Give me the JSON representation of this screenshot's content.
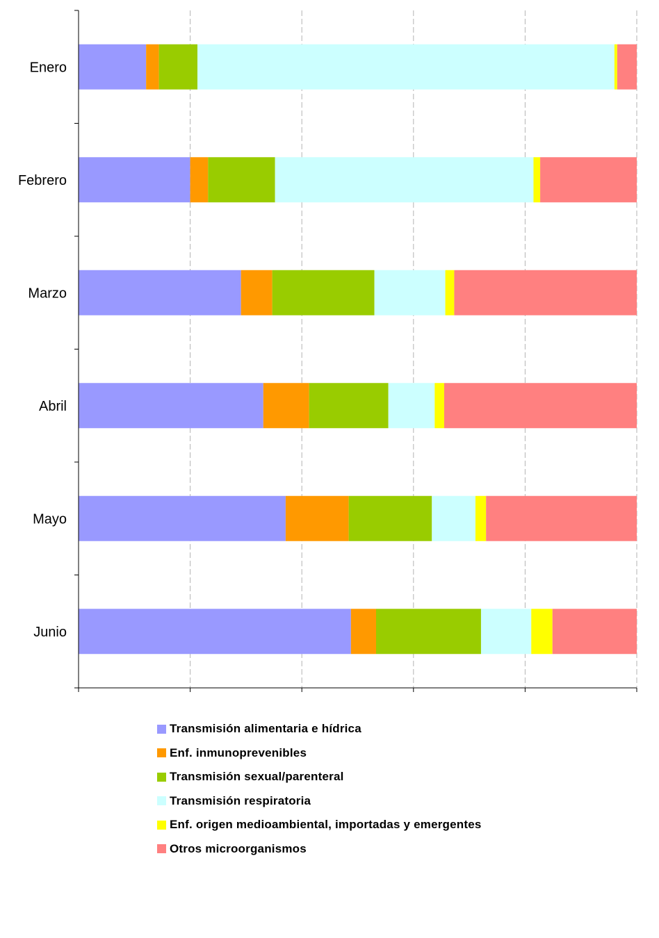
{
  "chart_data": {
    "type": "bar",
    "orientation": "horizontal",
    "stacked": "percent",
    "categories": [
      "Enero",
      "Febrero",
      "Marzo",
      "Abril",
      "Mayo",
      "Junio"
    ],
    "series": [
      {
        "name": "Transmisión alimentaria e hídrica",
        "color": "#9999ff",
        "values": [
          12.1,
          20.0,
          29.1,
          33.1,
          37.1,
          48.8
        ]
      },
      {
        "name": "Enf. inmunoprevenibles",
        "color": "#ff9900",
        "values": [
          2.3,
          3.2,
          5.6,
          8.2,
          11.3,
          4.5
        ]
      },
      {
        "name": "Transmisión sexual/parenteral",
        "color": "#99cc00",
        "values": [
          6.9,
          12.0,
          18.3,
          14.2,
          14.9,
          18.8
        ]
      },
      {
        "name": "Transmisión respiratoria",
        "color": "#ccffff",
        "values": [
          74.7,
          46.3,
          12.7,
          8.3,
          7.8,
          9.0
        ]
      },
      {
        "name": "Enf. origen medioambiental, importadas y emergentes",
        "color": "#ffff00",
        "values": [
          0.5,
          1.2,
          1.6,
          1.7,
          1.9,
          3.8
        ]
      },
      {
        "name": "Otros microorganismos",
        "color": "#ff8080",
        "values": [
          3.5,
          17.3,
          32.7,
          34.5,
          27.0,
          15.1
        ]
      }
    ],
    "xlim": [
      0,
      100
    ],
    "xticks": [
      "0%",
      "20%",
      "40%",
      "60%",
      "80%",
      "100%"
    ],
    "grid": "vertical dashed",
    "legend": "bottom"
  }
}
